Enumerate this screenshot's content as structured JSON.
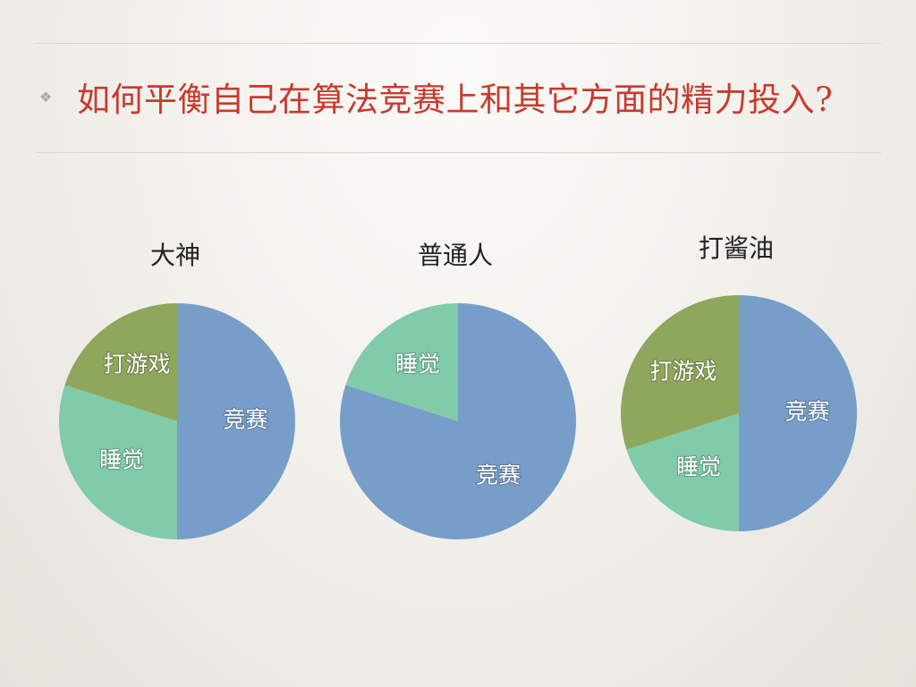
{
  "slide": {
    "bullet": "❖",
    "title": "如何平衡自己在算法竞赛上和其它方面的精力投入?"
  },
  "colors": {
    "竞赛": "#779ec9",
    "睡觉": "#80cba9",
    "打游戏": "#8fa75c"
  },
  "chart_data": [
    {
      "type": "pie",
      "title": "大神",
      "slices": [
        {
          "label": "竞赛",
          "value": 50
        },
        {
          "label": "睡觉",
          "value": 30
        },
        {
          "label": "打游戏",
          "value": 20
        }
      ]
    },
    {
      "type": "pie",
      "title": "普通人",
      "slices": [
        {
          "label": "竞赛",
          "value": 80
        },
        {
          "label": "睡觉",
          "value": 20
        }
      ]
    },
    {
      "type": "pie",
      "title": "打酱油",
      "slices": [
        {
          "label": "竞赛",
          "value": 50
        },
        {
          "label": "睡觉",
          "value": 20
        },
        {
          "label": "打游戏",
          "value": 30
        }
      ]
    }
  ]
}
